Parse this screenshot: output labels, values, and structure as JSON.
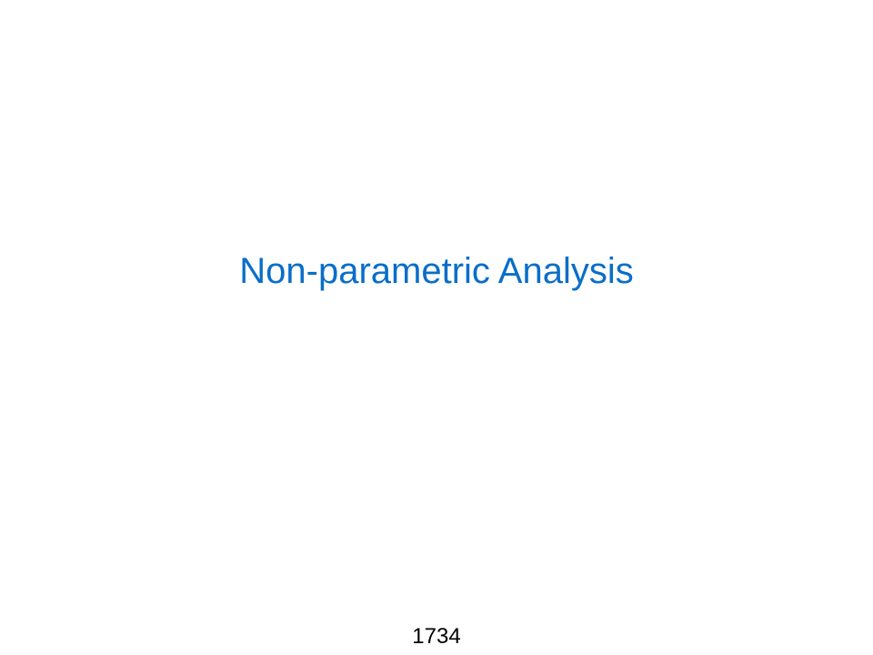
{
  "slide": {
    "title": "Non-parametric Analysis",
    "page_number": "1734",
    "title_color": "#0a6ec8",
    "background_color": "#ffffff"
  }
}
